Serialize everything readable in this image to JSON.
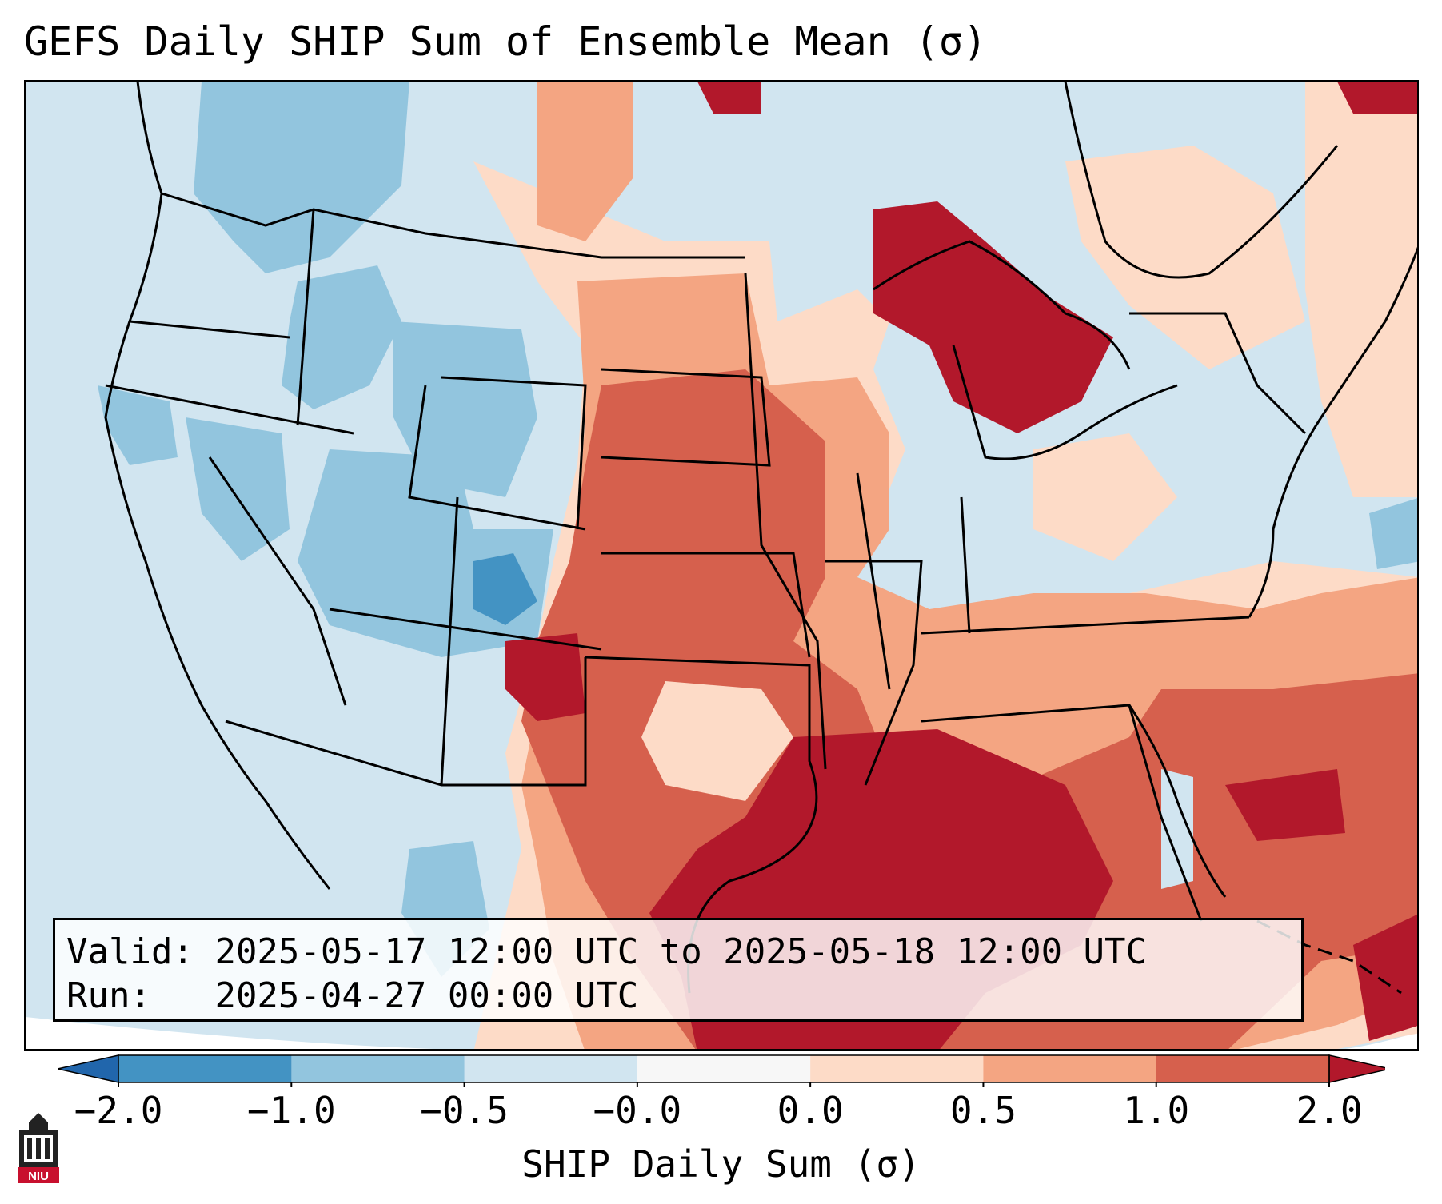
{
  "title": "GEFS Daily SHIP Sum of Ensemble Mean (σ)",
  "info": {
    "valid_label": "Valid:",
    "valid_value": "2025-05-17 12:00 UTC to 2025-05-18 12:00 UTC",
    "run_label": "Run:",
    "run_value": "2025-04-27 00:00 UTC"
  },
  "colorbar": {
    "label": "SHIP Daily Sum (σ)",
    "ticks": [
      "−2.0",
      "−1.0",
      "−0.5",
      "−0.0",
      "0.0",
      "0.5",
      "1.0",
      "2.0"
    ],
    "bins": [
      {
        "range": "< -2.0",
        "color": "#2166ac"
      },
      {
        "range": "-2.0 to -1.0",
        "color": "#4393c3"
      },
      {
        "range": "-1.0 to -0.5",
        "color": "#92c5de"
      },
      {
        "range": "-0.5 to -0.0",
        "color": "#d1e5f0"
      },
      {
        "range": "-0.0 to 0.0",
        "color": "#f7f7f7"
      },
      {
        "range": "0.0 to 0.5",
        "color": "#fddbc7"
      },
      {
        "range": "0.5 to 1.0",
        "color": "#f4a582"
      },
      {
        "range": "1.0 to 2.0",
        "color": "#d6604d"
      },
      {
        "range": "> 2.0",
        "color": "#b2182b"
      }
    ],
    "extend": "both"
  },
  "map": {
    "region": "Contiguous United States",
    "colors": {
      "ocean_outside": "#ffffff",
      "state_lines": "#000000"
    }
  },
  "logo": {
    "text": "NIU",
    "icon": "niu-tower-logo-icon"
  }
}
